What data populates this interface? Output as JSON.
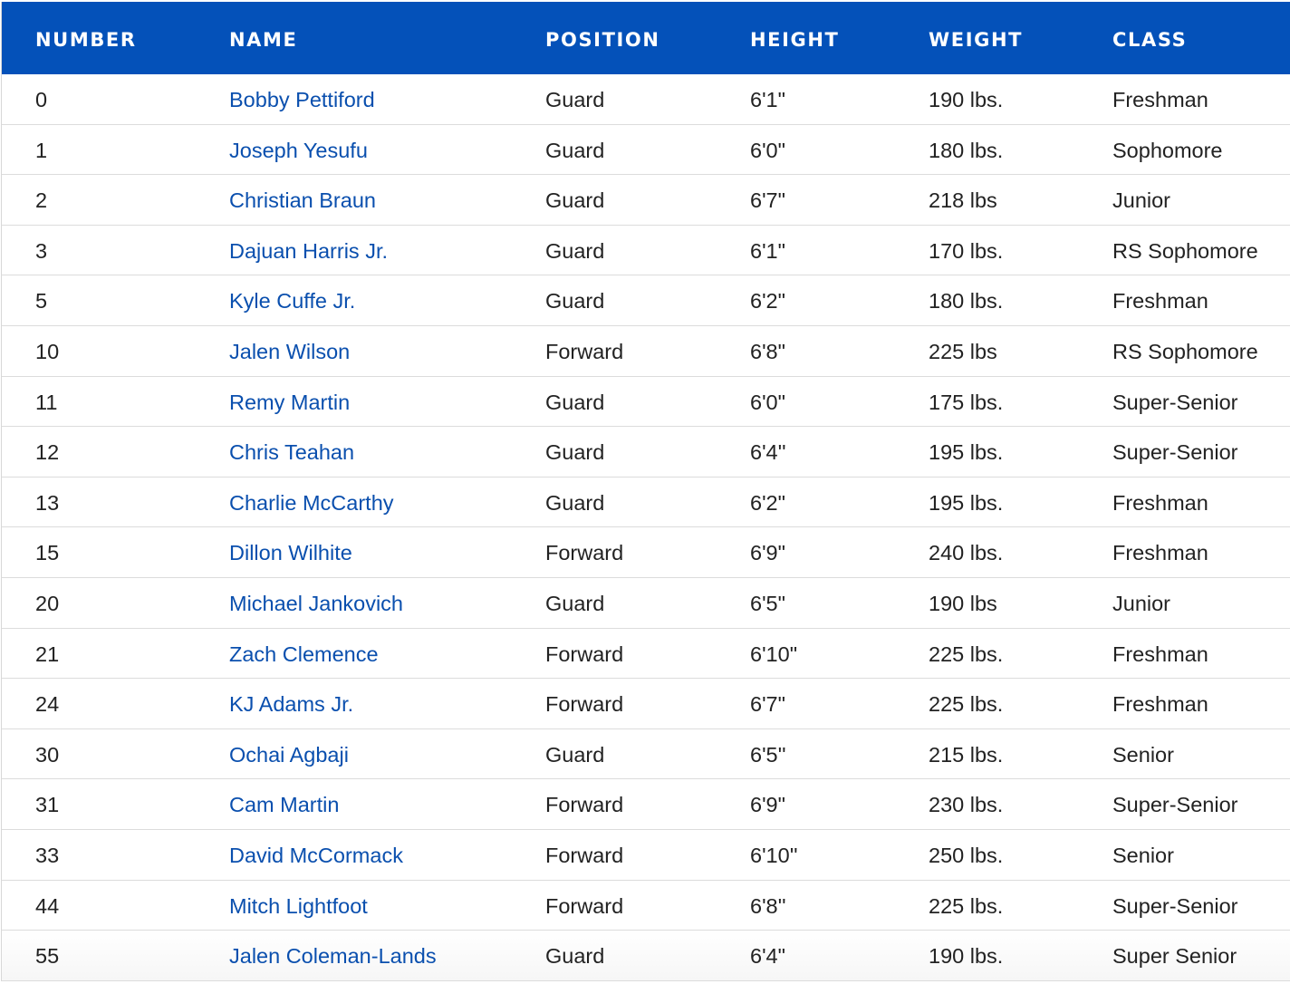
{
  "colors": {
    "header_bg": "#0451b9",
    "link": "#0a4fae"
  },
  "headers": [
    "NUMBER",
    "NAME",
    "POSITION",
    "HEIGHT",
    "WEIGHT",
    "CLASS"
  ],
  "rows": [
    [
      "0",
      "Bobby Pettiford",
      "Guard",
      "6'1\"",
      "190 lbs.",
      "Freshman"
    ],
    [
      "1",
      "Joseph Yesufu",
      "Guard",
      "6'0\"",
      "180 lbs.",
      "Sophomore"
    ],
    [
      "2",
      "Christian Braun",
      "Guard",
      "6'7\"",
      "218 lbs",
      "Junior"
    ],
    [
      "3",
      "Dajuan Harris Jr.",
      "Guard",
      "6'1\"",
      "170 lbs.",
      "RS Sophomore"
    ],
    [
      "5",
      "Kyle Cuffe Jr.",
      "Guard",
      "6'2\"",
      "180 lbs.",
      "Freshman"
    ],
    [
      "10",
      "Jalen Wilson",
      "Forward",
      "6'8\"",
      "225 lbs",
      "RS Sophomore"
    ],
    [
      "11",
      "Remy Martin",
      "Guard",
      "6'0\"",
      "175 lbs.",
      "Super-Senior"
    ],
    [
      "12",
      "Chris Teahan",
      "Guard",
      "6'4''",
      "195 lbs.",
      "Super-Senior"
    ],
    [
      "13",
      "Charlie McCarthy",
      "Guard",
      "6'2\"",
      "195 lbs.",
      "Freshman"
    ],
    [
      "15",
      "Dillon Wilhite",
      "Forward",
      "6'9\"",
      "240 lbs.",
      "Freshman"
    ],
    [
      "20",
      "Michael Jankovich",
      "Guard",
      "6'5\"",
      "190 lbs",
      "Junior"
    ],
    [
      "21",
      "Zach Clemence",
      "Forward",
      "6'10\"",
      "225 lbs.",
      "Freshman"
    ],
    [
      "24",
      "KJ Adams Jr.",
      "Forward",
      "6'7\"",
      "225 lbs.",
      "Freshman"
    ],
    [
      "30",
      "Ochai Agbaji",
      "Guard",
      "6'5''",
      "215 lbs.",
      "Senior"
    ],
    [
      "31",
      "Cam Martin",
      "Forward",
      "6'9\"",
      "230 lbs.",
      "Super-Senior"
    ],
    [
      "33",
      "David McCormack",
      "Forward",
      "6'10''",
      "250 lbs.",
      "Senior"
    ],
    [
      "44",
      "Mitch Lightfoot",
      "Forward",
      "6'8''",
      "225 lbs.",
      "Super-Senior"
    ],
    [
      "55",
      "Jalen Coleman-Lands",
      "Guard",
      "6'4\"",
      "190 lbs.",
      "Super Senior"
    ]
  ]
}
